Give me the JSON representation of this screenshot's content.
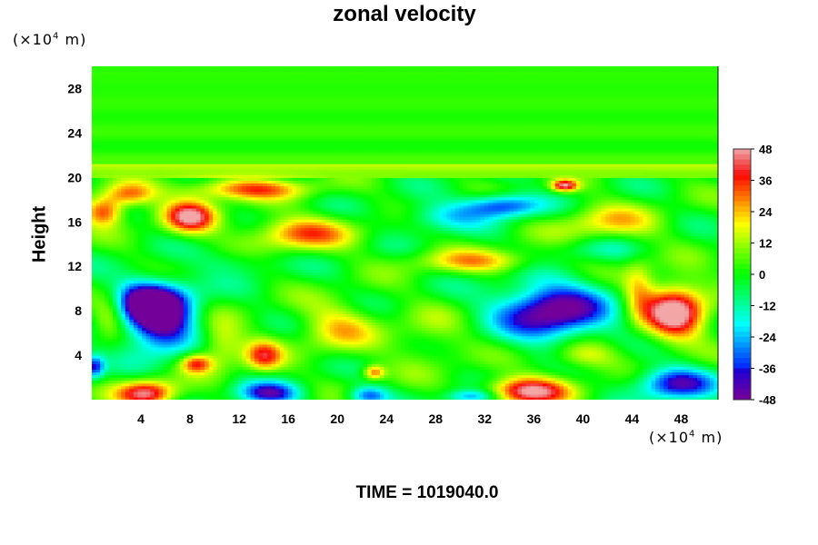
{
  "chart_data": {
    "type": "heatmap",
    "title": "zonal velocity",
    "ylabel": "Height",
    "x_unit_prefix": "(×10",
    "x_unit_exp": "4",
    "x_unit_suffix": " m)",
    "y_unit_prefix": "(×10",
    "y_unit_exp": "4",
    "y_unit_suffix": " m)",
    "x_ticks": [
      4,
      8,
      12,
      16,
      20,
      24,
      28,
      32,
      36,
      40,
      44,
      48
    ],
    "y_ticks": [
      4,
      8,
      12,
      16,
      20,
      24,
      28
    ],
    "xlim": [
      0,
      51
    ],
    "ylim": [
      0,
      30
    ],
    "colorbar": {
      "ticks": [
        48,
        36,
        24,
        12,
        0,
        -12,
        -24,
        -36,
        -48
      ],
      "range": [
        -48,
        48
      ]
    },
    "features": [
      {
        "x": 5.5,
        "y": 7.0,
        "value": -50,
        "sx": 2.6,
        "sy": 2.6
      },
      {
        "x": 4.5,
        "y": 9.0,
        "value": -38,
        "sx": 3.2,
        "sy": 1.8
      },
      {
        "x": 37.5,
        "y": 8.0,
        "value": -52,
        "sx": 4.2,
        "sy": 2.4
      },
      {
        "x": 47.5,
        "y": 1.5,
        "value": -40,
        "sx": 3.0,
        "sy": 1.4
      },
      {
        "x": 14.5,
        "y": 0.6,
        "value": -38,
        "sx": 2.4,
        "sy": 1.0
      },
      {
        "x": 22.5,
        "y": 0.4,
        "value": -30,
        "sx": 1.5,
        "sy": 0.8
      },
      {
        "x": 31.0,
        "y": 0.3,
        "value": -28,
        "sx": 2.0,
        "sy": 0.6
      },
      {
        "x": 0.2,
        "y": 3.0,
        "value": -36,
        "sx": 0.8,
        "sy": 1.0
      },
      {
        "x": 33.5,
        "y": 17.5,
        "value": -36,
        "sx": 3.0,
        "sy": 1.0
      },
      {
        "x": 28.5,
        "y": 16.5,
        "value": -18,
        "sx": 3.5,
        "sy": 1.2
      },
      {
        "x": 12.0,
        "y": 12.5,
        "value": -10,
        "sx": 3.0,
        "sy": 1.2
      },
      {
        "x": 41.0,
        "y": 13.5,
        "value": -8,
        "sx": 4.0,
        "sy": 1.0
      },
      {
        "x": 47.5,
        "y": 8.0,
        "value": 52,
        "sx": 2.4,
        "sy": 2.4
      },
      {
        "x": 35.5,
        "y": 0.8,
        "value": 46,
        "sx": 3.2,
        "sy": 1.2
      },
      {
        "x": 4.5,
        "y": 0.6,
        "value": 46,
        "sx": 2.2,
        "sy": 1.1
      },
      {
        "x": 8.0,
        "y": 16.5,
        "value": 44,
        "sx": 2.0,
        "sy": 1.4
      },
      {
        "x": 1.0,
        "y": 17.0,
        "value": 36,
        "sx": 1.5,
        "sy": 1.2
      },
      {
        "x": 12.5,
        "y": 19.0,
        "value": 30,
        "sx": 5.0,
        "sy": 0.9
      },
      {
        "x": 17.0,
        "y": 15.0,
        "value": 30,
        "sx": 4.0,
        "sy": 1.4
      },
      {
        "x": 38.5,
        "y": 19.3,
        "value": 44,
        "sx": 1.0,
        "sy": 0.5
      },
      {
        "x": 14.0,
        "y": 4.0,
        "value": 32,
        "sx": 1.4,
        "sy": 1.3
      },
      {
        "x": 8.5,
        "y": 3.3,
        "value": 32,
        "sx": 1.2,
        "sy": 0.8
      },
      {
        "x": 23.0,
        "y": 2.5,
        "value": 30,
        "sx": 0.8,
        "sy": 0.6
      },
      {
        "x": 3.0,
        "y": 18.5,
        "value": 30,
        "sx": 2.0,
        "sy": 1.0
      },
      {
        "x": 31.5,
        "y": 12.5,
        "value": 22,
        "sx": 5.0,
        "sy": 1.0
      },
      {
        "x": 42.0,
        "y": 16.0,
        "value": 20,
        "sx": 4.0,
        "sy": 1.5
      },
      {
        "x": 20.0,
        "y": 6.5,
        "value": 20,
        "sx": 3.0,
        "sy": 2.2
      },
      {
        "x": 1.5,
        "y": 8.0,
        "value": 22,
        "sx": 1.3,
        "sy": 2.0
      },
      {
        "x": 10.5,
        "y": 5.0,
        "value": 20,
        "sx": 1.8,
        "sy": 2.0
      },
      {
        "x": 40.0,
        "y": 4.0,
        "value": 20,
        "sx": 2.5,
        "sy": 1.2
      },
      {
        "x": 44.5,
        "y": 10.0,
        "value": 20,
        "sx": 1.2,
        "sy": 2.5
      },
      {
        "x": 27.5,
        "y": 5.5,
        "value": 10,
        "sx": 3.0,
        "sy": 2.5
      }
    ]
  },
  "time_label": "TIME = 1019040.0"
}
